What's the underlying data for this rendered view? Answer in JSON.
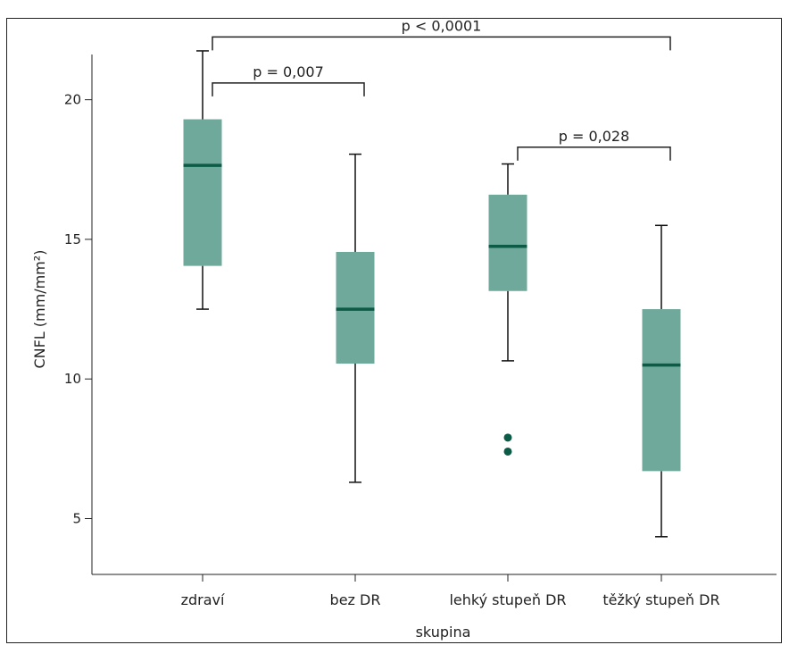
{
  "chart_data": {
    "type": "box",
    "xlabel": "skupina",
    "ylabel": "CNFL (mm/mm²)",
    "ylim": [
      3.0,
      22.9
    ],
    "yticks": [
      5,
      10,
      15,
      20
    ],
    "colors": {
      "box": "#6fa99b",
      "median": "#0b5b47",
      "outlier": "#0b5b47",
      "line": "#111111"
    },
    "categories": [
      "zdraví",
      "bez DR",
      "lehký stupeň DR",
      "těžký stupeň DR"
    ],
    "boxes": [
      {
        "category": "zdraví",
        "whisker_low": 12.5,
        "q1": 14.05,
        "median": 17.65,
        "q3": 19.3,
        "whisker_high": 21.75,
        "outliers": []
      },
      {
        "category": "bez DR",
        "whisker_low": 6.3,
        "q1": 10.55,
        "median": 12.5,
        "q3": 14.55,
        "whisker_high": 18.05,
        "outliers": []
      },
      {
        "category": "lehký stupeň DR",
        "whisker_low": 10.65,
        "q1": 13.15,
        "median": 14.75,
        "q3": 16.6,
        "whisker_high": 17.7,
        "outliers": [
          7.9,
          7.4
        ]
      },
      {
        "category": "těžký stupeň DR",
        "whisker_low": 4.35,
        "q1": 6.7,
        "median": 10.5,
        "q3": 12.5,
        "whisker_high": 15.5,
        "outliers": []
      }
    ],
    "annotations": [
      {
        "from": "zdraví",
        "to": "těžký stupeň DR",
        "level": 22.25,
        "label": "p < 0,0001"
      },
      {
        "from": "zdraví",
        "to": "bez DR",
        "level": 20.6,
        "label": "p = 0,007"
      },
      {
        "from": "lehký stupeň DR",
        "to": "těžký stupeň DR",
        "level": 18.3,
        "label": "p = 0,028"
      }
    ]
  }
}
